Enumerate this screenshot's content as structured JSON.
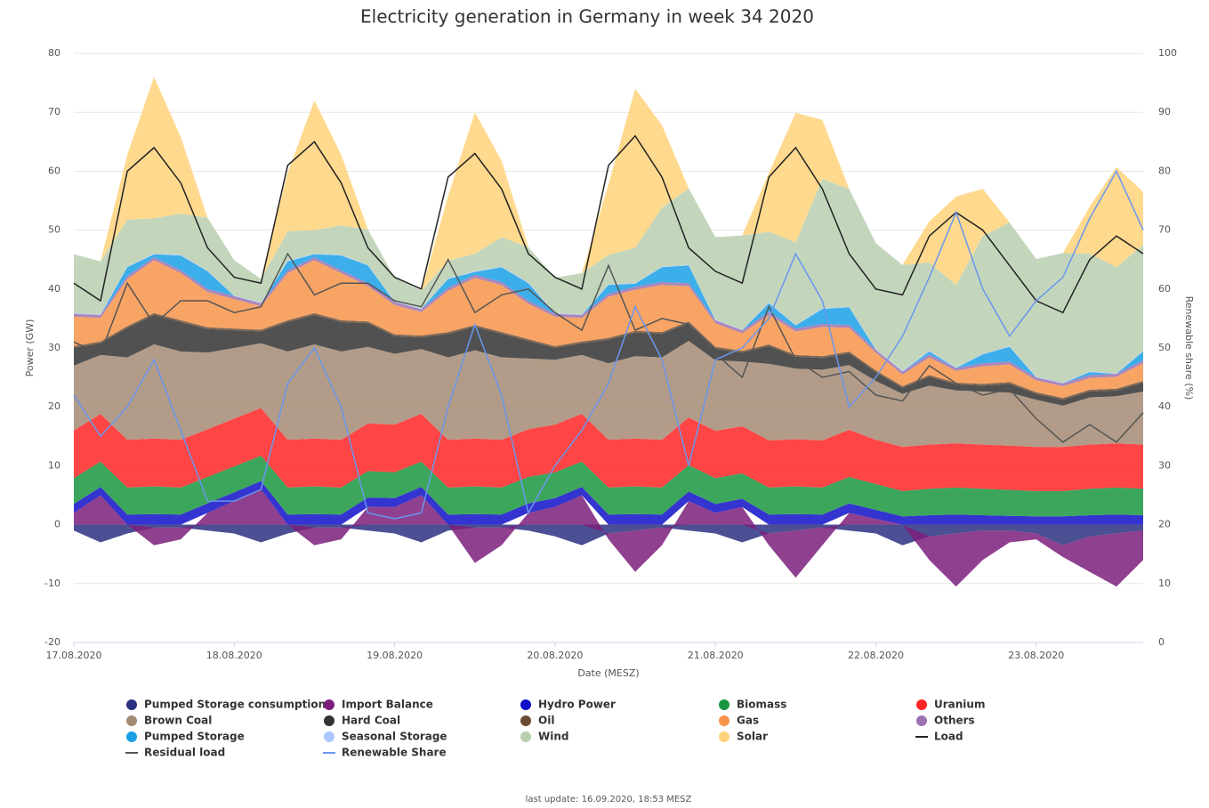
{
  "chart_data": {
    "type": "stacked_area",
    "title": "Electricity generation in Germany in week 34 2020",
    "x_label": "Date (MESZ)",
    "y_label": "Power (GW)",
    "y2_label": "Renewable share (%)",
    "footer": "last update: 16.09.2020, 18:53 MESZ",
    "categories": [
      "17.08.2020",
      null,
      null,
      null,
      null,
      null,
      "18.08.2020",
      null,
      null,
      null,
      null,
      null,
      "19.08.2020",
      null,
      null,
      null,
      null,
      null,
      "20.08.2020",
      null,
      null,
      null,
      null,
      null,
      "21.08.2020",
      null,
      null,
      null,
      null,
      null,
      "22.08.2020",
      null,
      null,
      null,
      null,
      null,
      "23.08.2020",
      null,
      null,
      null,
      null
    ],
    "ylim": [
      -20,
      80
    ],
    "yticks": [
      -20,
      -10,
      0,
      10,
      20,
      30,
      40,
      50,
      60,
      70,
      80
    ],
    "y2lim": [
      0,
      100
    ],
    "y2ticks": [
      0,
      10,
      20,
      30,
      40,
      50,
      60,
      70,
      80,
      90,
      100
    ],
    "grid": true,
    "series": [
      {
        "name": "Pumped Storage consumption",
        "type": "area",
        "color": "#2b3080",
        "values": [
          -1,
          -3,
          -1.5,
          -0.5,
          -0.5,
          -1,
          -1.5,
          -3,
          -1.5,
          -0.5,
          -0.5,
          -1,
          -1.5,
          -3,
          -1,
          -0.5,
          -0.5,
          -1,
          -2,
          -3.5,
          -1.5,
          -1,
          -0.5,
          -1,
          -1.5,
          -3,
          -1.5,
          -1,
          -0.5,
          -1,
          -1.5,
          -3.5,
          -2,
          -1.5,
          -1,
          -1,
          -1.5,
          -3.5,
          -2,
          -1.5,
          -1
        ]
      },
      {
        "name": "Import Balance",
        "type": "area",
        "color": "#7b1f7b",
        "values": [
          2,
          5,
          0,
          -3,
          -2,
          2,
          4,
          6,
          0,
          -3,
          -2,
          3,
          3,
          5,
          0,
          -6,
          -3,
          2,
          3,
          5,
          -1,
          -7,
          -3,
          4,
          2,
          3,
          -2,
          -8,
          -3,
          2,
          1,
          0,
          -4,
          -9,
          -5,
          -2,
          -1,
          -2,
          -6,
          -9,
          -5
        ]
      },
      {
        "name": "Hydro Power",
        "type": "area",
        "color": "#1010c8",
        "values": [
          1.5,
          1.4,
          1.7,
          1.8,
          1.7,
          1.6,
          1.5,
          1.4,
          1.7,
          1.8,
          1.7,
          1.6,
          1.5,
          1.4,
          1.7,
          1.8,
          1.7,
          1.6,
          1.5,
          1.4,
          1.7,
          1.8,
          1.7,
          1.6,
          1.5,
          1.4,
          1.7,
          1.8,
          1.7,
          1.6,
          1.5,
          1.4,
          1.6,
          1.7,
          1.6,
          1.5,
          1.4,
          1.4,
          1.6,
          1.7,
          1.6
        ]
      },
      {
        "name": "Biomass",
        "type": "area",
        "color": "#1a9641",
        "values": [
          4.4,
          4.3,
          4.6,
          4.7,
          4.6,
          4.5,
          4.4,
          4.3,
          4.6,
          4.7,
          4.6,
          4.5,
          4.4,
          4.3,
          4.6,
          4.7,
          4.6,
          4.5,
          4.4,
          4.3,
          4.6,
          4.7,
          4.6,
          4.5,
          4.4,
          4.3,
          4.6,
          4.7,
          4.6,
          4.5,
          4.4,
          4.3,
          4.5,
          4.6,
          4.5,
          4.4,
          4.3,
          4.3,
          4.5,
          4.6,
          4.5
        ]
      },
      {
        "name": "Uranium",
        "type": "area",
        "color": "#ff2424",
        "values": [
          8.1,
          8.1,
          8.1,
          8.1,
          8.1,
          8.1,
          8.1,
          8.1,
          8.1,
          8.1,
          8.1,
          8.1,
          8.1,
          8.1,
          8.1,
          8.1,
          8.1,
          8.1,
          8.1,
          8.1,
          8.1,
          8.1,
          8.1,
          8.1,
          8,
          8,
          8,
          8,
          8,
          8,
          7.5,
          7.5,
          7.5,
          7.5,
          7.5,
          7.5,
          7.5,
          7.5,
          7.5,
          7.5,
          7.5
        ]
      },
      {
        "name": "Brown Coal",
        "type": "area",
        "color": "#a48b74",
        "values": [
          11,
          10,
          14,
          16,
          15,
          13,
          12,
          11,
          15,
          16,
          15,
          13,
          12,
          11,
          14,
          15,
          14,
          12,
          11,
          10,
          13,
          14,
          14,
          13,
          12,
          11,
          13,
          12,
          12,
          11,
          10,
          9,
          10,
          9,
          9,
          9,
          8,
          7,
          8,
          8,
          9
        ]
      },
      {
        "name": "Hard Coal",
        "type": "area",
        "color": "#333333",
        "values": [
          3,
          2,
          5,
          5,
          5,
          4,
          3,
          2,
          5,
          5,
          5,
          4,
          3,
          2,
          4,
          4,
          4,
          3,
          2,
          2,
          4,
          4,
          4,
          3,
          2,
          1.5,
          3,
          2,
          2,
          2,
          1.5,
          1,
          1.5,
          1,
          1,
          1.5,
          1,
          1,
          1,
          1,
          1.5
        ]
      },
      {
        "name": "Oil",
        "type": "area",
        "color": "#6b4c32",
        "values": [
          0.3,
          0.3,
          0.3,
          0.3,
          0.3,
          0.3,
          0.3,
          0.3,
          0.3,
          0.3,
          0.3,
          0.3,
          0.3,
          0.3,
          0.3,
          0.3,
          0.3,
          0.3,
          0.3,
          0.3,
          0.3,
          0.3,
          0.3,
          0.3,
          0.3,
          0.3,
          0.3,
          0.3,
          0.3,
          0.3,
          0.3,
          0.3,
          0.3,
          0.3,
          0.3,
          0.3,
          0.3,
          0.3,
          0.3,
          0.3,
          0.3
        ]
      },
      {
        "name": "Gas",
        "type": "area",
        "color": "#f7944a",
        "values": [
          5,
          4,
          8,
          9,
          8,
          6,
          5,
          4,
          8,
          9,
          8,
          6,
          5,
          4,
          7,
          8,
          8,
          6,
          5,
          4,
          7,
          7,
          8,
          6,
          4,
          3,
          5,
          4,
          5,
          4,
          3,
          2,
          3,
          2,
          3,
          3,
          2,
          2,
          2,
          2,
          3
        ]
      },
      {
        "name": "Others",
        "type": "area",
        "color": "#9b72b0",
        "values": [
          0.5,
          0.5,
          0.5,
          0.5,
          0.5,
          0.5,
          0.5,
          0.5,
          0.5,
          0.5,
          0.5,
          0.5,
          0.5,
          0.5,
          0.5,
          0.5,
          0.5,
          0.5,
          0.5,
          0.5,
          0.5,
          0.5,
          0.5,
          0.5,
          0.5,
          0.5,
          0.5,
          0.5,
          0.5,
          0.5,
          0.5,
          0.5,
          0.5,
          0.5,
          0.5,
          0.5,
          0.5,
          0.5,
          0.5,
          0.5,
          0.5
        ]
      },
      {
        "name": "Pumped Storage",
        "type": "area",
        "color": "#1aa0e6",
        "values": [
          0,
          0,
          1.5,
          0.5,
          2.5,
          3,
          0,
          0,
          1.5,
          0.5,
          2.5,
          3,
          0,
          0,
          1.5,
          0.5,
          2.5,
          3,
          0,
          0,
          1.5,
          0.5,
          2.5,
          3,
          0,
          0,
          1.5,
          0.5,
          2.5,
          3,
          0,
          0,
          0.5,
          0,
          1.5,
          2.5,
          0,
          0,
          0.5,
          0,
          1.5
        ]
      },
      {
        "name": "Seasonal Storage",
        "type": "area",
        "color": "#aac8ff",
        "values": [
          0.1,
          0.1,
          0.1,
          0.1,
          0.1,
          0.1,
          0.1,
          0.1,
          0.1,
          0.1,
          0.1,
          0.1,
          0.1,
          0.1,
          0.1,
          0.1,
          0.1,
          0.1,
          0.1,
          0.1,
          0.1,
          0.1,
          0.1,
          0.1,
          0.1,
          0.1,
          0.1,
          0.1,
          0.1,
          0.1,
          0.1,
          0.1,
          0.1,
          0.1,
          0.1,
          0.1,
          0.1,
          0.1,
          0.1,
          0.1,
          0.1
        ]
      },
      {
        "name": "Wind",
        "type": "area",
        "color": "#b8cfb0",
        "values": [
          10,
          9,
          8,
          6,
          7,
          9,
          6,
          4,
          5,
          4,
          5,
          6,
          4,
          3,
          3,
          3,
          5,
          6,
          6,
          7,
          5,
          6,
          10,
          13,
          14,
          16,
          12,
          14,
          22,
          20,
          18,
          18,
          15,
          14,
          20,
          21,
          20,
          22,
          20,
          18,
          18
        ]
      },
      {
        "name": "Solar",
        "type": "area",
        "color": "#ffd27a",
        "values": [
          0,
          0,
          11,
          24,
          13,
          0,
          0,
          0,
          10,
          22,
          12,
          0,
          0,
          0,
          11,
          24,
          13,
          0,
          0,
          0,
          12,
          27,
          14,
          0,
          0,
          0,
          10,
          22,
          10,
          0,
          0,
          0,
          7,
          15,
          8,
          0,
          0,
          0,
          8,
          17,
          9
        ]
      },
      {
        "name": "Load",
        "type": "line",
        "color": "#222222",
        "values": [
          41,
          38,
          60,
          64,
          58,
          47,
          42,
          41,
          61,
          65,
          58,
          47,
          42,
          40,
          59,
          63,
          57,
          46,
          42,
          40,
          61,
          66,
          59,
          47,
          43,
          41,
          59,
          64,
          57,
          46,
          40,
          39,
          49,
          53,
          50,
          44,
          38,
          36,
          45,
          49,
          46
        ]
      },
      {
        "name": "Residual load",
        "type": "line",
        "color": "#555555",
        "values": [
          31,
          29,
          41,
          34,
          38,
          38,
          36,
          37,
          46,
          39,
          41,
          41,
          38,
          37,
          45,
          36,
          39,
          40,
          36,
          33,
          44,
          33,
          35,
          34,
          29,
          25,
          37,
          28,
          25,
          26,
          22,
          21,
          27,
          24,
          22,
          23,
          18,
          14,
          17,
          14,
          19
        ]
      },
      {
        "name": "Renewable Share",
        "type": "line",
        "axis": "y2",
        "color": "#6a96ee",
        "values": [
          42,
          35,
          40,
          48,
          36,
          24,
          24,
          26,
          44,
          50,
          40,
          22,
          21,
          22,
          40,
          54,
          42,
          22,
          30,
          36,
          44,
          57,
          48,
          30,
          48,
          50,
          55,
          66,
          58,
          40,
          45,
          52,
          62,
          73,
          60,
          52,
          58,
          62,
          72,
          80,
          70
        ]
      }
    ]
  }
}
